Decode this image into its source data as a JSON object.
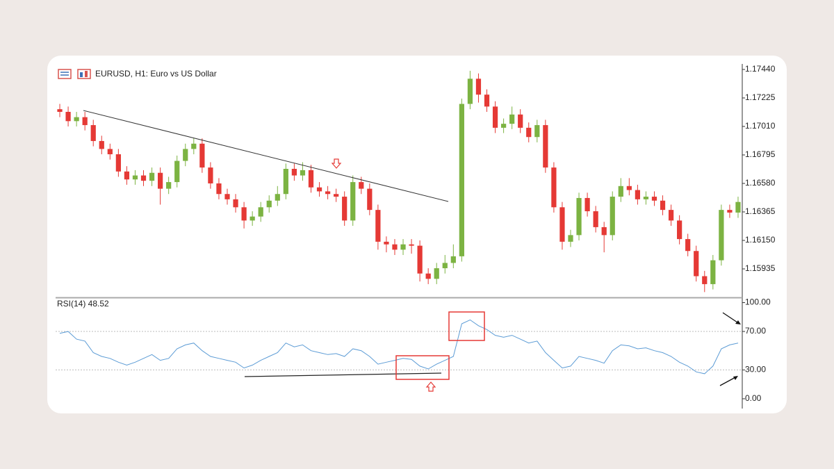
{
  "chart_data": [
    {
      "type": "candlestick",
      "title": "EURUSD, H1:  Euro vs US Dollar",
      "up_color": "#7cb342",
      "down_color": "#e53935",
      "open": [
        1.1714,
        1.1712,
        1.1705,
        1.1708,
        1.1702,
        1.169,
        1.1684,
        1.168,
        1.1667,
        1.1661,
        1.1664,
        1.166,
        1.1666,
        1.1654,
        1.1659,
        1.1675,
        1.1684,
        1.1688,
        1.167,
        1.1658,
        1.165,
        1.1646,
        1.164,
        1.163,
        1.1633,
        1.164,
        1.1645,
        1.165,
        1.1669,
        1.1664,
        1.1668,
        1.1655,
        1.1652,
        1.165,
        1.1648,
        1.163,
        1.1659,
        1.1654,
        1.1638,
        1.1614,
        1.1612,
        1.1608,
        1.1612,
        1.1611,
        1.159,
        1.1586,
        1.1594,
        1.1598,
        1.1603,
        1.1718,
        1.1737,
        1.1725,
        1.1716,
        1.17,
        1.1703,
        1.171,
        1.17,
        1.1693,
        1.1702,
        1.167,
        1.164,
        1.1614,
        1.1619,
        1.1647,
        1.1637,
        1.1625,
        1.1619,
        1.1648,
        1.1656,
        1.1653,
        1.1646,
        1.1648,
        1.1645,
        1.1638,
        1.163,
        1.1616,
        1.1607,
        1.1588,
        1.1582,
        1.16,
        1.1638,
        1.1636
      ],
      "high": [
        1.1718,
        1.1716,
        1.1712,
        1.1712,
        1.1706,
        1.1694,
        1.1688,
        1.1684,
        1.1671,
        1.1668,
        1.1668,
        1.167,
        1.167,
        1.1663,
        1.1679,
        1.1688,
        1.1692,
        1.1692,
        1.1674,
        1.1662,
        1.1654,
        1.165,
        1.1644,
        1.1637,
        1.1644,
        1.1649,
        1.1656,
        1.1673,
        1.1673,
        1.1674,
        1.1672,
        1.1659,
        1.1656,
        1.1654,
        1.1652,
        1.1664,
        1.1663,
        1.1658,
        1.1642,
        1.1618,
        1.1616,
        1.1616,
        1.1616,
        1.1615,
        1.1594,
        1.1598,
        1.1604,
        1.1612,
        1.1722,
        1.1743,
        1.1741,
        1.1729,
        1.172,
        1.1707,
        1.1716,
        1.1714,
        1.1704,
        1.1706,
        1.1706,
        1.1674,
        1.1644,
        1.1623,
        1.1651,
        1.1651,
        1.1641,
        1.1629,
        1.1652,
        1.1662,
        1.1662,
        1.1657,
        1.1652,
        1.1652,
        1.1649,
        1.1642,
        1.1634,
        1.162,
        1.1611,
        1.1592,
        1.1604,
        1.1642,
        1.1642,
        1.1648
      ],
      "low": [
        1.1708,
        1.1701,
        1.1701,
        1.1698,
        1.1686,
        1.168,
        1.1676,
        1.1663,
        1.1657,
        1.1657,
        1.1656,
        1.1656,
        1.1642,
        1.165,
        1.1655,
        1.1671,
        1.168,
        1.1666,
        1.1654,
        1.1646,
        1.1642,
        1.1636,
        1.1624,
        1.1626,
        1.1629,
        1.1636,
        1.1641,
        1.1646,
        1.166,
        1.166,
        1.1651,
        1.1648,
        1.1646,
        1.1644,
        1.1626,
        1.1626,
        1.165,
        1.1634,
        1.1608,
        1.1606,
        1.1604,
        1.1604,
        1.1605,
        1.1584,
        1.1582,
        1.1582,
        1.159,
        1.1594,
        1.1599,
        1.1714,
        1.1719,
        1.1712,
        1.1696,
        1.1696,
        1.1699,
        1.1696,
        1.1689,
        1.1689,
        1.1666,
        1.1636,
        1.1608,
        1.161,
        1.1615,
        1.1633,
        1.1621,
        1.1606,
        1.1615,
        1.1644,
        1.1649,
        1.1642,
        1.1642,
        1.1641,
        1.1634,
        1.1626,
        1.1612,
        1.1603,
        1.1584,
        1.1576,
        1.1578,
        1.1596,
        1.1632,
        1.1632
      ],
      "close": [
        1.1712,
        1.1705,
        1.1708,
        1.1702,
        1.169,
        1.1684,
        1.168,
        1.1667,
        1.1661,
        1.1664,
        1.166,
        1.1666,
        1.1654,
        1.1659,
        1.1675,
        1.1684,
        1.1688,
        1.167,
        1.1658,
        1.165,
        1.1646,
        1.164,
        1.163,
        1.1633,
        1.164,
        1.1645,
        1.165,
        1.1669,
        1.1664,
        1.1668,
        1.1655,
        1.1652,
        1.165,
        1.1648,
        1.163,
        1.1659,
        1.1654,
        1.1638,
        1.1614,
        1.1612,
        1.1608,
        1.1612,
        1.1611,
        1.159,
        1.1586,
        1.1594,
        1.1598,
        1.1603,
        1.1718,
        1.1737,
        1.1725,
        1.1716,
        1.17,
        1.1703,
        1.171,
        1.17,
        1.1693,
        1.1702,
        1.167,
        1.164,
        1.1614,
        1.1619,
        1.1647,
        1.1637,
        1.1625,
        1.1619,
        1.1648,
        1.1656,
        1.1653,
        1.1646,
        1.1648,
        1.1645,
        1.1638,
        1.163,
        1.1616,
        1.1607,
        1.1588,
        1.1582,
        1.16,
        1.1638,
        1.1636,
        1.1644
      ],
      "ylim": [
        1.1572,
        1.17466
      ],
      "yticks": [
        {
          "value": 1.1744,
          "label": "1.17440"
        },
        1.17225,
        {
          "value": 1.1701,
          "label": "1.17010"
        },
        1.16795,
        {
          "value": 1.1658,
          "label": "1.16580"
        },
        1.16365,
        {
          "value": 1.1615,
          "label": "1.16150"
        },
        1.15935
      ]
    },
    {
      "type": "line",
      "title": "RSI(14) 48.52",
      "color": "#5b9bd5",
      "values": [
        68,
        70,
        62,
        60,
        48,
        44,
        42,
        38,
        35,
        38,
        42,
        46,
        40,
        42,
        52,
        56,
        58,
        50,
        44,
        42,
        40,
        38,
        32,
        35,
        40,
        44,
        48,
        58,
        54,
        56,
        50,
        48,
        46,
        47,
        44,
        52,
        50,
        44,
        36,
        38,
        40,
        42,
        41,
        34,
        31,
        36,
        40,
        44,
        78,
        82,
        76,
        72,
        66,
        64,
        66,
        62,
        58,
        60,
        48,
        40,
        32,
        34,
        44,
        42,
        40,
        37,
        50,
        56,
        55,
        52,
        53,
        50,
        48,
        44,
        38,
        34,
        28,
        26,
        34,
        52,
        56,
        58
      ],
      "ylim": [
        -8,
        104
      ],
      "yticks": [
        {
          "value": 100,
          "label": "100.00"
        },
        {
          "value": 70,
          "label": "70.00"
        },
        {
          "value": 30,
          "label": "30.00"
        },
        {
          "value": 0,
          "label": "0.00"
        }
      ],
      "levels": [
        70,
        30
      ]
    }
  ]
}
